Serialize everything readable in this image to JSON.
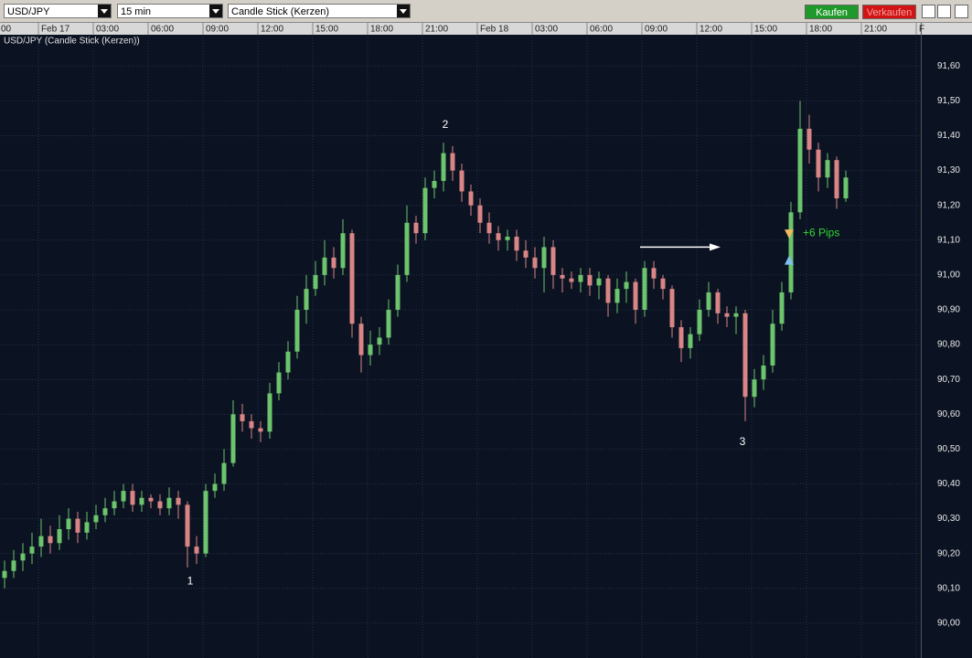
{
  "toolbar": {
    "symbol": "USD/JPY",
    "interval": "15 min",
    "chart_style": "Candle Stick (Kerzen)",
    "buy": "Kaufen",
    "sell": "Verkaufen"
  },
  "chart_data": {
    "type": "candlestick",
    "subtitle": "USD/JPY (Candle Stick (Kerzen))",
    "up_color": "#6cc46c",
    "down_color": "#d98585",
    "grid": true,
    "categories": [
      null,
      null,
      null,
      null,
      null,
      null,
      null,
      null,
      null,
      null,
      null,
      null,
      null,
      null,
      null,
      null,
      null,
      null,
      null,
      null,
      null,
      null,
      null,
      null,
      null,
      null,
      null,
      null,
      null,
      null,
      null,
      null,
      null,
      null,
      null,
      null,
      null,
      null,
      null,
      null,
      null,
      null,
      null,
      null,
      null,
      null,
      null,
      null,
      null,
      null,
      null,
      null,
      null,
      null,
      null,
      null,
      null,
      null,
      null,
      null,
      null,
      null,
      null,
      null,
      null,
      null,
      null,
      null,
      null,
      null,
      null,
      null,
      null,
      null,
      null,
      null,
      null,
      null,
      null,
      null,
      null,
      null,
      null,
      null,
      null,
      null,
      null,
      null,
      null,
      null,
      null,
      null,
      null
    ],
    "open": [
      90.13,
      90.15,
      90.18,
      90.2,
      90.22,
      90.25,
      90.23,
      90.27,
      90.3,
      90.26,
      90.29,
      90.31,
      90.33,
      90.35,
      90.38,
      90.34,
      90.36,
      90.35,
      90.33,
      90.36,
      90.34,
      90.22,
      90.2,
      90.38,
      90.4,
      90.46,
      90.6,
      90.58,
      90.56,
      90.55,
      90.66,
      90.72,
      90.78,
      90.9,
      90.96,
      91.0,
      91.05,
      91.02,
      91.12,
      90.86,
      90.77,
      90.8,
      90.82,
      90.9,
      91.0,
      91.15,
      91.12,
      91.25,
      91.27,
      91.35,
      91.3,
      91.24,
      91.2,
      91.15,
      91.12,
      91.1,
      91.11,
      91.07,
      91.05,
      91.02,
      91.08,
      91.0,
      90.99,
      90.98,
      91.0,
      90.97,
      90.99,
      90.92,
      90.96,
      90.98,
      90.9,
      91.02,
      90.99,
      90.96,
      90.85,
      90.79,
      90.83,
      90.9,
      90.95,
      90.89,
      90.88,
      90.89,
      90.65,
      90.7,
      90.74,
      90.86,
      90.95,
      91.18,
      91.42,
      91.36,
      91.28,
      91.33,
      91.22
    ],
    "high": [
      90.18,
      90.21,
      90.23,
      90.26,
      90.3,
      90.28,
      90.31,
      90.33,
      90.32,
      90.32,
      90.34,
      90.36,
      90.38,
      90.4,
      90.4,
      90.38,
      90.37,
      90.37,
      90.39,
      90.38,
      90.35,
      90.25,
      90.4,
      90.43,
      90.5,
      90.64,
      90.63,
      90.6,
      90.58,
      90.69,
      90.75,
      90.81,
      90.94,
      91.0,
      91.04,
      91.1,
      91.08,
      91.16,
      91.13,
      90.88,
      90.84,
      90.85,
      90.93,
      91.03,
      91.2,
      91.17,
      91.28,
      91.3,
      91.38,
      91.37,
      91.32,
      91.26,
      91.22,
      91.18,
      91.14,
      91.13,
      91.13,
      91.1,
      91.08,
      91.11,
      91.1,
      91.02,
      91.01,
      91.02,
      91.02,
      91.01,
      91.0,
      90.99,
      91.01,
      90.99,
      91.04,
      91.04,
      91.0,
      90.97,
      90.87,
      90.85,
      90.93,
      90.98,
      90.96,
      90.91,
      90.91,
      90.9,
      90.73,
      90.77,
      90.9,
      90.98,
      91.21,
      91.5,
      91.46,
      91.38,
      91.35,
      91.34,
      91.3
    ],
    "low": [
      90.1,
      90.13,
      90.15,
      90.17,
      90.19,
      90.2,
      90.21,
      90.24,
      90.23,
      90.24,
      90.27,
      90.29,
      90.31,
      90.33,
      90.32,
      90.32,
      90.33,
      90.31,
      90.31,
      90.3,
      90.16,
      90.17,
      90.19,
      90.36,
      90.38,
      90.45,
      90.55,
      90.53,
      90.52,
      90.53,
      90.64,
      90.7,
      90.76,
      90.86,
      90.94,
      90.97,
      90.99,
      91.0,
      90.82,
      90.72,
      90.74,
      90.77,
      90.8,
      90.88,
      90.98,
      91.09,
      91.1,
      91.22,
      91.24,
      91.27,
      91.21,
      91.17,
      91.12,
      91.09,
      91.07,
      91.07,
      91.04,
      91.02,
      90.99,
      90.95,
      90.96,
      90.95,
      90.96,
      90.95,
      90.94,
      90.93,
      90.88,
      90.89,
      90.92,
      90.86,
      90.88,
      90.96,
      90.93,
      90.82,
      90.75,
      90.76,
      90.81,
      90.88,
      90.86,
      90.85,
      90.83,
      90.58,
      90.62,
      90.67,
      90.72,
      90.84,
      90.93,
      91.16,
      91.32,
      91.24,
      91.25,
      91.19,
      91.21
    ],
    "close": [
      90.15,
      90.18,
      90.2,
      90.22,
      90.25,
      90.23,
      90.27,
      90.3,
      90.26,
      90.29,
      90.31,
      90.33,
      90.35,
      90.38,
      90.34,
      90.36,
      90.35,
      90.33,
      90.36,
      90.34,
      90.22,
      90.2,
      90.38,
      90.4,
      90.46,
      90.6,
      90.58,
      90.56,
      90.55,
      90.66,
      90.72,
      90.78,
      90.9,
      90.96,
      91.0,
      91.05,
      91.02,
      91.12,
      90.86,
      90.77,
      90.8,
      90.82,
      90.9,
      91.0,
      91.15,
      91.12,
      91.25,
      91.27,
      91.35,
      91.3,
      91.24,
      91.2,
      91.15,
      91.12,
      91.1,
      91.11,
      91.07,
      91.05,
      91.02,
      91.08,
      91.0,
      90.99,
      90.98,
      91.0,
      90.97,
      90.99,
      90.92,
      90.96,
      90.98,
      90.9,
      91.02,
      90.99,
      90.96,
      90.85,
      90.79,
      90.83,
      90.9,
      90.95,
      90.89,
      90.88,
      90.89,
      90.65,
      90.7,
      90.74,
      90.86,
      90.95,
      91.18,
      91.42,
      91.36,
      91.28,
      91.33,
      91.22,
      91.28
    ],
    "xlim": [
      -0.3,
      100.2
    ],
    "xticks": [
      {
        "value": -2.3,
        "label": "00"
      },
      {
        "value": 3.7,
        "label": "Feb 17"
      },
      {
        "value": 9.7,
        "label": "03:00"
      },
      {
        "value": 15.7,
        "label": "06:00"
      },
      {
        "value": 21.7,
        "label": "09:00"
      },
      {
        "value": 27.7,
        "label": "12:00"
      },
      {
        "value": 33.7,
        "label": "15:00"
      },
      {
        "value": 39.7,
        "label": "18:00"
      },
      {
        "value": 45.7,
        "label": "21:00"
      },
      {
        "value": 51.7,
        "label": "Feb 18"
      },
      {
        "value": 57.7,
        "label": "03:00"
      },
      {
        "value": 63.7,
        "label": "06:00"
      },
      {
        "value": 69.7,
        "label": "09:00"
      },
      {
        "value": 75.7,
        "label": "12:00"
      },
      {
        "value": 81.7,
        "label": "15:00"
      },
      {
        "value": 87.7,
        "label": "18:00"
      },
      {
        "value": 93.7,
        "label": "21:00"
      },
      {
        "value": 99.7,
        "label": "F"
      }
    ],
    "ylim": [
      89.9,
      91.69
    ],
    "yticks": [
      {
        "value": 90.0,
        "label": "90,00"
      },
      {
        "value": 90.1,
        "label": "90,10"
      },
      {
        "value": 90.2,
        "label": "90,20"
      },
      {
        "value": 90.3,
        "label": "90,30"
      },
      {
        "value": 90.4,
        "label": "90,40"
      },
      {
        "value": 90.5,
        "label": "90,50"
      },
      {
        "value": 90.6,
        "label": "90,60"
      },
      {
        "value": 90.7,
        "label": "90,70"
      },
      {
        "value": 90.8,
        "label": "90,80"
      },
      {
        "value": 90.9,
        "label": "90,90"
      },
      {
        "value": 91.0,
        "label": "91,00"
      },
      {
        "value": 91.1,
        "label": "91,10"
      },
      {
        "value": 91.2,
        "label": "91,20"
      },
      {
        "value": 91.3,
        "label": "91,30"
      },
      {
        "value": 91.4,
        "label": "91,40"
      },
      {
        "value": 91.5,
        "label": "91,50"
      },
      {
        "value": 91.6,
        "label": "91,60"
      }
    ],
    "annotations": [
      {
        "text": "1",
        "x": 20.3,
        "y": 90.12,
        "color": "#ffffff"
      },
      {
        "text": "2",
        "x": 48.2,
        "y": 91.43,
        "color": "#ffffff"
      },
      {
        "text": "3",
        "x": 80.7,
        "y": 90.52,
        "color": "#ffffff"
      },
      {
        "text": "+6 Pips",
        "x": 87.3,
        "y": 91.12,
        "color": "#33d633"
      }
    ],
    "markers": [
      {
        "shape": "triangle-up",
        "x": 85.8,
        "y": 91.04,
        "color": "#7fbff0"
      },
      {
        "shape": "triangle-down",
        "x": 85.8,
        "y": 91.12,
        "color": "#f0b860"
      }
    ],
    "arrow": {
      "x": [
        69.5,
        78.3
      ],
      "y": 91.08,
      "color": "#ffffff"
    }
  }
}
